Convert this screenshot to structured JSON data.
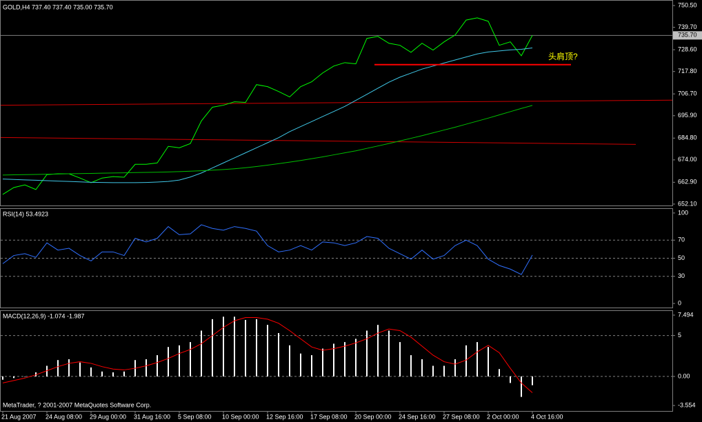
{
  "chart_data": [
    {
      "type": "line",
      "title": "GOLD,H4  737.40 737.40 735.00 735.70",
      "ylim": [
        651.4,
        752.9
      ],
      "yticks": [
        {
          "value": 750.5,
          "label": "750.50"
        },
        {
          "value": 739.7,
          "label": "739.70"
        },
        {
          "value": 728.6,
          "label": "728.60"
        },
        {
          "value": 717.8,
          "label": "717.80"
        },
        {
          "value": 706.7,
          "label": "706.70"
        },
        {
          "value": 695.9,
          "label": "695.90"
        },
        {
          "value": 684.8,
          "label": "684.80"
        },
        {
          "value": 674,
          "label": "674.00"
        },
        {
          "value": 662.9,
          "label": "662.90"
        },
        {
          "value": 652.1,
          "label": "652.10"
        }
      ],
      "series": [
        {
          "color": "#00ff00",
          "values": [
            656.9,
            660.3,
            661.6,
            659.3,
            666.7,
            667.1,
            667.1,
            665.0,
            662.7,
            665.0,
            665.7,
            665.4,
            671.8,
            671.8,
            672.5,
            680.7,
            680.0,
            682.1,
            693.3,
            700.1,
            701.1,
            702.8,
            702.5,
            711.3,
            710.3,
            707.9,
            705.2,
            710.3,
            712.7,
            717.1,
            720.5,
            722.2,
            721.6,
            734.2,
            735.2,
            731.8,
            730.8,
            727.3,
            731.8,
            728.4,
            732.5,
            735.9,
            743.3,
            744.4,
            742.7,
            730.8,
            732.5,
            725.6,
            735.7
          ]
        },
        {
          "color": "#40c8e8",
          "values": [
            664.5,
            664.3,
            664.1,
            663.9,
            663.7,
            663.5,
            663.3,
            663.1,
            662.9,
            662.8,
            662.7,
            662.7,
            662.7,
            662.8,
            663.0,
            663.3,
            664,
            665.5,
            667.5,
            670,
            672.5,
            675,
            677.5,
            680,
            682.5,
            685,
            688,
            690.5,
            693,
            695.5,
            698,
            700.5,
            703.5,
            706.5,
            709.5,
            712.5,
            715,
            717,
            719,
            720.5,
            722,
            723.5,
            725,
            726.5,
            727.5,
            728,
            728.5,
            728.8,
            729.5
          ]
        },
        {
          "color": "#00c000",
          "values": [
            666.5,
            666.6,
            666.7,
            666.8,
            666.9,
            667.0,
            667.1,
            667.2,
            667.3,
            667.4,
            667.5,
            667.6,
            667.7,
            667.8,
            667.9,
            668.0,
            668.2,
            668.4,
            668.6,
            668.9,
            669.2,
            669.6,
            670.1,
            670.7,
            671.4,
            672.1,
            672.9,
            673.7,
            674.6,
            675.5,
            676.5,
            677.5,
            678.5,
            679.7,
            680.9,
            682.1,
            683.4,
            684.7,
            686.0,
            687.4,
            688.8,
            690.2,
            691.7,
            693.2,
            694.7,
            696.3,
            697.9,
            699.5,
            701.0
          ]
        }
      ],
      "trendlines": [
        {
          "color": "#d00000",
          "values": [
            701.1,
            703.6
          ]
        },
        {
          "color": "#d00000",
          "values": [
            685.1,
            681.7
          ]
        }
      ],
      "neckline": {
        "color": "#ff0000",
        "value": 721.2
      },
      "last_price": {
        "value": 735.7,
        "label": "735.70"
      },
      "annotation": {
        "text": "头肩顶?",
        "color": "#ffff00"
      }
    },
    {
      "type": "line",
      "title": "RSI(14) 53.4923",
      "ylim": [
        -4.5,
        104.5
      ],
      "yticks": [
        100,
        70,
        50,
        30,
        0
      ],
      "levels": [
        70,
        50,
        30
      ],
      "series": [
        {
          "color": "#3070ff",
          "values": [
            44,
            53,
            55,
            51,
            67,
            59,
            61,
            53,
            47,
            57,
            57,
            53,
            72,
            68,
            72,
            85,
            76,
            77,
            87,
            83,
            81,
            85,
            83,
            80,
            64,
            57,
            59,
            64,
            59,
            68,
            67,
            64,
            67,
            74,
            72,
            61,
            55,
            49,
            59,
            49,
            53,
            64,
            70,
            64,
            49,
            42,
            38,
            32,
            53.5
          ]
        }
      ]
    },
    {
      "type": "bar",
      "title": "MACD(12,26,9) -1.074 -1.987",
      "ylim": [
        -4.22,
        8.0
      ],
      "yticks": [
        7.494,
        5,
        {
          "value": 0,
          "label": "0.00"
        },
        -3.554
      ],
      "levels": [
        5,
        0
      ],
      "color": "#ffffff",
      "values": [
        -0.4,
        -0.2,
        0.0,
        0.5,
        1.3,
        2.0,
        2.1,
        1.7,
        1.1,
        0.6,
        0.5,
        0.6,
        2.0,
        2.1,
        2.6,
        3.6,
        3.8,
        4.2,
        5.6,
        7.0,
        7.3,
        7.3,
        6.9,
        7.0,
        6.3,
        5.3,
        3.8,
        2.8,
        2.6,
        3.4,
        4.0,
        4.2,
        4.6,
        5.6,
        6.3,
        5.6,
        4.2,
        2.6,
        2.1,
        1.3,
        1.3,
        2.1,
        3.8,
        4.2,
        3.6,
        0.9,
        -0.8,
        -2.5,
        -1.074
      ],
      "signal": {
        "color": "#ff0000",
        "values": [
          -0.8,
          -0.5,
          -0.2,
          0.2,
          0.7,
          1.2,
          1.6,
          1.8,
          1.6,
          1.2,
          0.9,
          0.8,
          1.0,
          1.3,
          1.7,
          2.2,
          2.8,
          3.3,
          4.0,
          5.0,
          6.0,
          6.8,
          7.2,
          7.2,
          7.0,
          6.5,
          5.6,
          4.6,
          3.6,
          3.2,
          3.4,
          3.7,
          4.1,
          4.6,
          5.3,
          5.8,
          5.6,
          4.8,
          3.7,
          2.6,
          1.8,
          1.5,
          2.0,
          3.0,
          3.8,
          2.9,
          1.0,
          -0.8,
          -1.987
        ]
      },
      "categories": [
        "21 Aug 2007",
        null,
        null,
        null,
        "24 Aug 08:00",
        null,
        null,
        null,
        "29 Aug 00:00",
        null,
        null,
        null,
        "31 Aug 16:00",
        null,
        null,
        null,
        "5 Sep 08:00",
        null,
        null,
        null,
        "10 Sep 00:00",
        null,
        null,
        null,
        "12 Sep 16:00",
        null,
        null,
        null,
        "17 Sep 08:00",
        null,
        null,
        null,
        "20 Sep 00:00",
        null,
        null,
        null,
        "24 Sep 16:00",
        null,
        null,
        null,
        "27 Sep 08:00",
        null,
        null,
        null,
        "2 Oct 00:00",
        null,
        null,
        null,
        "4 Oct 16:00"
      ],
      "footer": "MetaTrader, ? 2001-2007 MetaQuotes Software Corp."
    }
  ]
}
